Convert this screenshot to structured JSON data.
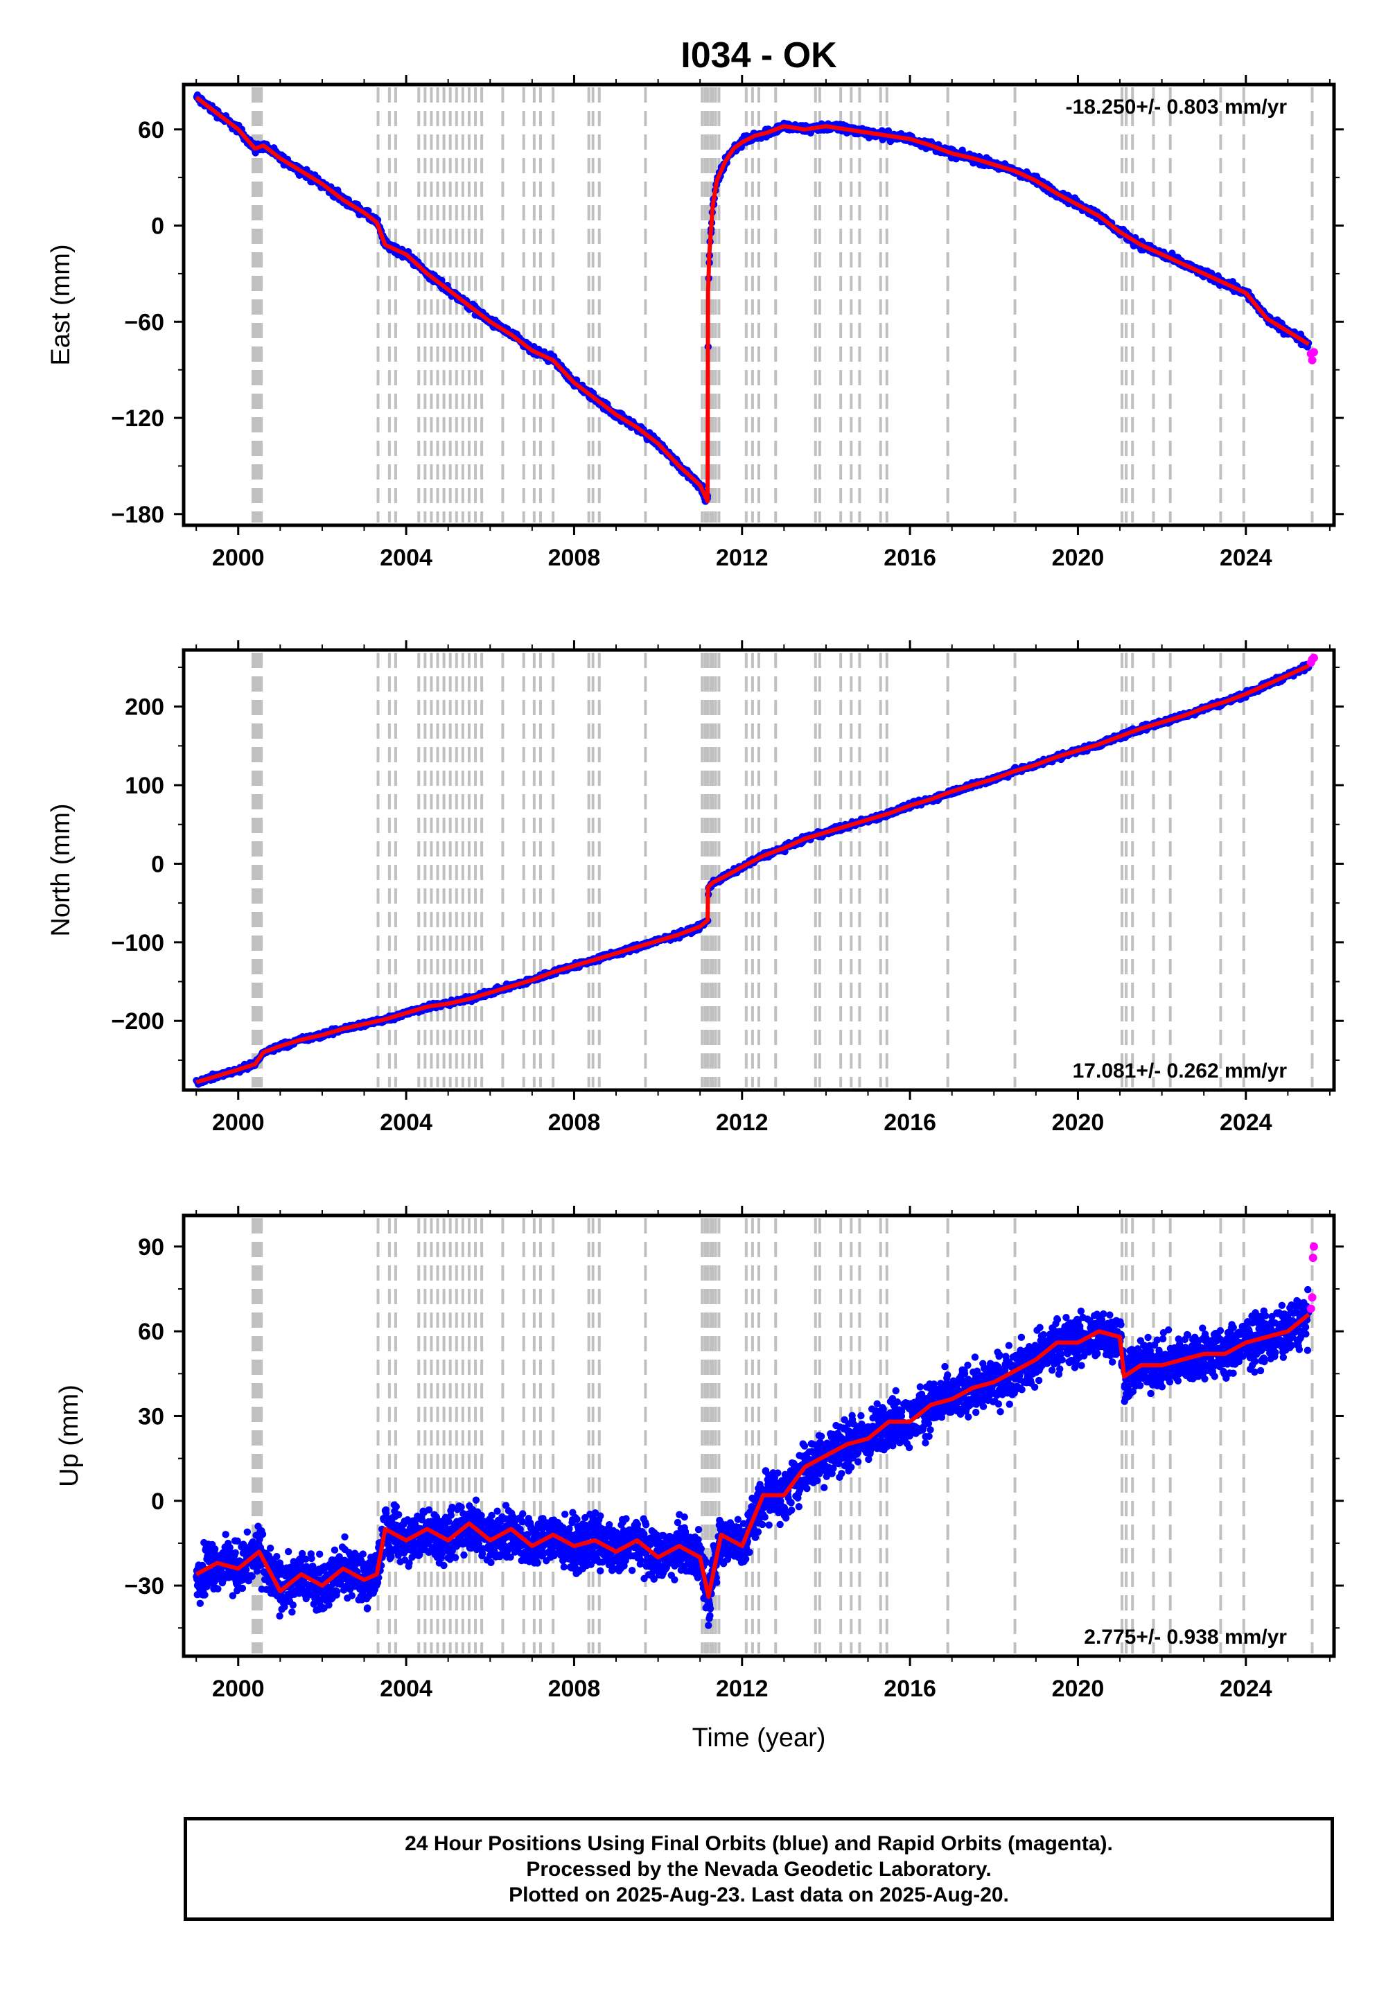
{
  "chart_data": {
    "title": "I034 - OK",
    "x_axis": {
      "label": "Time (year)",
      "range": [
        1998.7,
        2026.1
      ],
      "ticks": [
        2000,
        2004,
        2008,
        2012,
        2016,
        2020,
        2024
      ],
      "tick_labels": [
        "2000",
        "2004",
        "2008",
        "2012",
        "2016",
        "2020",
        "2024"
      ]
    },
    "event_lines_years": [
      2000.35,
      2000.4,
      2000.45,
      2000.5,
      2000.55,
      2003.33,
      2003.6,
      2003.75,
      2004.3,
      2004.45,
      2004.6,
      2004.75,
      2004.9,
      2005.05,
      2005.2,
      2005.35,
      2005.5,
      2005.65,
      2005.8,
      2006.3,
      2006.8,
      2007.05,
      2007.2,
      2007.5,
      2008.35,
      2008.45,
      2008.6,
      2009.7,
      2011.05,
      2011.12,
      2011.18,
      2011.25,
      2011.3,
      2011.37,
      2011.45,
      2012.1,
      2012.25,
      2012.4,
      2012.8,
      2013.75,
      2013.85,
      2014.35,
      2014.6,
      2014.8,
      2015.3,
      2015.45,
      2016.9,
      2018.5,
      2021.05,
      2021.15,
      2021.3,
      2021.8,
      2022.2,
      2023.4,
      2023.95,
      2025.58
    ],
    "panels": [
      {
        "name": "east",
        "type": "scatter",
        "ylabel": "East (mm)",
        "ylim": [
          -187,
          88
        ],
        "yticks": [
          60,
          0,
          -60,
          -120,
          -180
        ],
        "ytick_labels": [
          "60",
          "0",
          "−60",
          "−120",
          "−180"
        ],
        "rate_text": "-18.250+/- 0.803 mm/yr",
        "rate_position": "top-right",
        "series": [
          {
            "role": "final-orbit",
            "x": [
              1999.0,
              1999.5,
              2000.0,
              2000.4,
              2000.6,
              2001.0,
              2001.5,
              2002.0,
              2002.5,
              2003.0,
              2003.3,
              2003.5,
              2004.0,
              2004.5,
              2005.0,
              2005.5,
              2006.0,
              2006.5,
              2007.0,
              2007.5,
              2008.0,
              2008.5,
              2009.0,
              2009.5,
              2010.0,
              2010.5,
              2011.0,
              2011.18,
              2011.19,
              2011.22,
              2011.3,
              2011.4,
              2011.6,
              2011.8,
              2012.0,
              2012.3,
              2012.6,
              2013.0,
              2013.5,
              2014.0,
              2014.5,
              2015.0,
              2015.5,
              2016.0,
              2016.5,
              2017.0,
              2017.5,
              2018.0,
              2018.5,
              2019.0,
              2019.5,
              2020.0,
              2020.5,
              2021.0,
              2021.5,
              2022.0,
              2022.5,
              2023.0,
              2023.5,
              2024.0,
              2024.5,
              2025.0,
              2025.5
            ],
            "y": [
              80,
              70,
              60,
              48,
              50,
              42,
              34,
              26,
              16,
              8,
              2,
              -12,
              -18,
              -30,
              -40,
              -50,
              -60,
              -68,
              -78,
              -84,
              -98,
              -108,
              -118,
              -126,
              -136,
              -150,
              -162,
              -172,
              -42,
              -18,
              12,
              28,
              40,
              48,
              52,
              56,
              58,
              62,
              60,
              62,
              60,
              58,
              56,
              54,
              50,
              45,
              42,
              38,
              34,
              28,
              20,
              13,
              6,
              -4,
              -12,
              -18,
              -24,
              -30,
              -36,
              -42,
              -58,
              -66,
              -74
            ]
          },
          {
            "role": "rapid-orbit",
            "x": [
              2025.55,
              2025.58,
              2025.62
            ],
            "y": [
              -80,
              -84,
              -79
            ]
          }
        ]
      },
      {
        "name": "north",
        "type": "scatter",
        "ylabel": "North (mm)",
        "ylim": [
          -288,
          272
        ],
        "yticks": [
          200,
          100,
          0,
          -100,
          -200
        ],
        "ytick_labels": [
          "200",
          "100",
          "0",
          "−100",
          "−200"
        ],
        "rate_text": "17.081+/- 0.262 mm/yr",
        "rate_position": "bottom-right",
        "series": [
          {
            "role": "final-orbit",
            "x": [
              1999.0,
              1999.5,
              2000.0,
              2000.4,
              2000.6,
              2001.0,
              2001.5,
              2002.0,
              2002.5,
              2003.0,
              2003.5,
              2004.0,
              2004.5,
              2005.0,
              2005.5,
              2006.0,
              2006.5,
              2007.0,
              2007.5,
              2008.0,
              2008.5,
              2009.0,
              2009.5,
              2010.0,
              2010.5,
              2011.0,
              2011.18,
              2011.19,
              2011.3,
              2011.6,
              2012.0,
              2012.5,
              2013.0,
              2013.5,
              2014.0,
              2014.5,
              2015.0,
              2015.5,
              2016.0,
              2016.5,
              2017.0,
              2017.5,
              2018.0,
              2018.5,
              2019.0,
              2019.5,
              2020.0,
              2020.5,
              2021.0,
              2021.5,
              2022.0,
              2022.5,
              2023.0,
              2023.5,
              2024.0,
              2024.5,
              2025.0,
              2025.5
            ],
            "y": [
              -278,
              -270,
              -262,
              -255,
              -240,
              -232,
              -224,
              -218,
              -210,
              -204,
              -198,
              -190,
              -182,
              -178,
              -172,
              -164,
              -156,
              -148,
              -138,
              -130,
              -122,
              -114,
              -106,
              -98,
              -90,
              -80,
              -72,
              -30,
              -24,
              -16,
              -4,
              10,
              20,
              32,
              40,
              48,
              56,
              64,
              74,
              82,
              92,
              100,
              108,
              118,
              126,
              136,
              144,
              152,
              162,
              172,
              180,
              188,
              198,
              206,
              216,
              228,
              240,
              252
            ]
          },
          {
            "role": "rapid-orbit",
            "x": [
              2025.55,
              2025.58,
              2025.62
            ],
            "y": [
              256,
              260,
              262
            ]
          }
        ]
      },
      {
        "name": "up",
        "type": "scatter",
        "ylabel": "Up (mm)",
        "ylim": [
          -55,
          101
        ],
        "yticks": [
          90,
          60,
          30,
          0,
          -30
        ],
        "ytick_labels": [
          "90",
          "60",
          "30",
          "0",
          "−30"
        ],
        "rate_text": "2.775+/- 0.938 mm/yr",
        "rate_position": "bottom-right",
        "series": [
          {
            "role": "final-orbit",
            "x": [
              1999.0,
              1999.5,
              2000.0,
              2000.5,
              2001.0,
              2001.5,
              2002.0,
              2002.5,
              2003.0,
              2003.3,
              2003.5,
              2004.0,
              2004.5,
              2005.0,
              2005.5,
              2006.0,
              2006.5,
              2007.0,
              2007.5,
              2008.0,
              2008.5,
              2009.0,
              2009.5,
              2010.0,
              2010.5,
              2011.0,
              2011.2,
              2011.5,
              2012.0,
              2012.5,
              2013.0,
              2013.5,
              2014.0,
              2014.5,
              2015.0,
              2015.5,
              2016.0,
              2016.5,
              2017.0,
              2017.5,
              2018.0,
              2018.5,
              2019.0,
              2019.5,
              2020.0,
              2020.5,
              2021.0,
              2021.1,
              2021.5,
              2022.0,
              2022.5,
              2023.0,
              2023.5,
              2024.0,
              2024.5,
              2025.0,
              2025.5
            ],
            "y": [
              -26,
              -22,
              -24,
              -18,
              -32,
              -26,
              -30,
              -24,
              -28,
              -26,
              -10,
              -14,
              -10,
              -14,
              -8,
              -14,
              -10,
              -16,
              -12,
              -16,
              -14,
              -18,
              -14,
              -20,
              -16,
              -20,
              -34,
              -12,
              -16,
              2,
              2,
              12,
              16,
              20,
              22,
              28,
              28,
              34,
              36,
              40,
              42,
              46,
              50,
              56,
              56,
              60,
              58,
              44,
              48,
              48,
              50,
              52,
              52,
              56,
              58,
              60,
              66
            ]
          },
          {
            "role": "rapid-orbit",
            "x": [
              2025.55,
              2025.58,
              2025.6,
              2025.62
            ],
            "y": [
              68,
              72,
              86,
              90
            ]
          }
        ]
      }
    ],
    "colors": {
      "final_orbit": "#0000ff",
      "rapid_orbit": "#ff00ff",
      "model": "#ff0000",
      "event_line": "#c0c0c0",
      "frame": "#000000"
    }
  },
  "footer": {
    "line1": "24 Hour Positions Using Final Orbits (blue) and Rapid Orbits (magenta).",
    "line2": "Processed by the Nevada Geodetic Laboratory.",
    "line3": "Plotted on 2025-Aug-23. Last data on 2025-Aug-20."
  }
}
